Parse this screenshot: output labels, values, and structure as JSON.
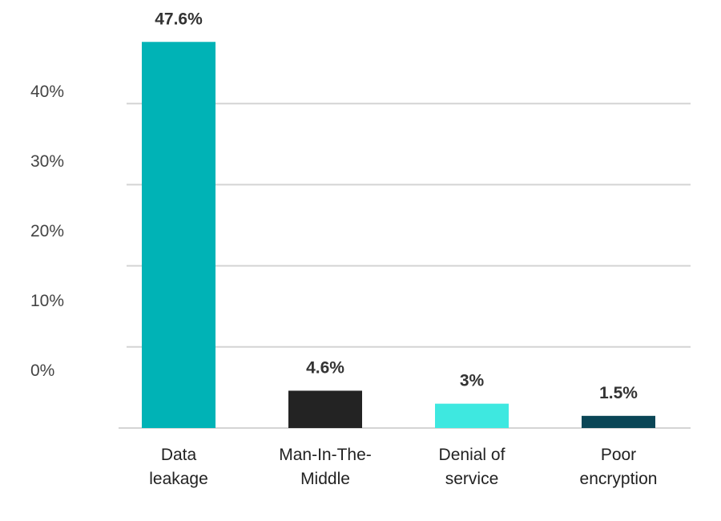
{
  "chart_data": {
    "type": "bar",
    "title": "",
    "xlabel": "",
    "ylabel": "",
    "categories": [
      [
        "Data",
        "leakage"
      ],
      [
        "Man-In-The-",
        "Middle"
      ],
      [
        "Denial of",
        "service"
      ],
      [
        "Poor",
        "encryption"
      ]
    ],
    "values": [
      47.6,
      4.6,
      3,
      1.5
    ],
    "data_labels": [
      "47.6%",
      "4.6%",
      "3%",
      "1.5%"
    ],
    "colors": [
      "#00b3b6",
      "#232323",
      "#3ee8e0",
      "#0a4656"
    ],
    "yticks": [
      40,
      30,
      20,
      10,
      0
    ],
    "ytick_labels": [
      "40%",
      "30%",
      "20%",
      "10%",
      "0%"
    ],
    "gridlines": [
      10,
      20,
      30,
      40
    ],
    "ylim": [
      0,
      50
    ],
    "grid": true,
    "legend": "none"
  }
}
